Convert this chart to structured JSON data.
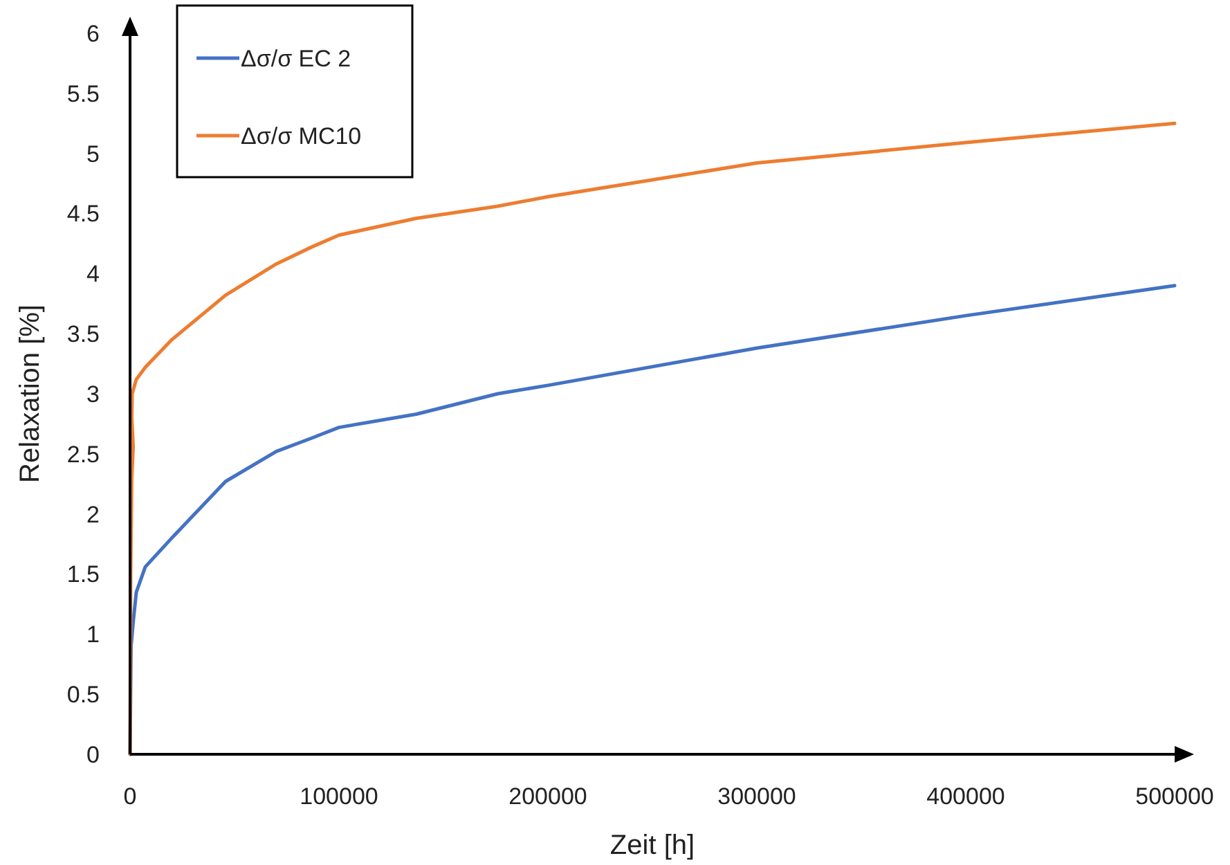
{
  "chart_data": {
    "type": "line",
    "xlabel": "Zeit [h]",
    "ylabel": "Relaxation [%]",
    "xlim": [
      0,
      500000
    ],
    "xticks": [
      0,
      100000,
      200000,
      300000,
      400000,
      500000
    ],
    "ylim": [
      0,
      6
    ],
    "yticks": [
      0,
      0.5,
      1,
      1.5,
      2,
      2.5,
      3,
      3.5,
      4,
      4.5,
      5,
      5.5,
      6
    ],
    "grid": false,
    "legend": "top left",
    "marker": "none",
    "line_style": "solid",
    "series": [
      {
        "name": "Δσ/σ EC 2",
        "color": "#4472c4",
        "x": [
          0,
          500,
          1500,
          3000,
          7300,
          20000,
          45700,
          70000,
          86800,
          100000,
          137000,
          176000,
          200000,
          300000,
          400000,
          500000
        ],
        "values": [
          0,
          0.9,
          1.1,
          1.35,
          1.56,
          1.8,
          2.27,
          2.52,
          2.63,
          2.72,
          2.83,
          3.0,
          3.07,
          3.38,
          3.65,
          3.9
        ]
      },
      {
        "name": "Δσ/σ MC10",
        "color": "#ed7d31",
        "x": [
          0,
          300,
          800,
          1500,
          800,
          1000,
          3000,
          7300,
          20000,
          45700,
          70000,
          86800,
          100000,
          137000,
          176000,
          200000,
          300000,
          400000,
          500000
        ],
        "values": [
          0,
          1.5,
          2.3,
          2.56,
          2.8,
          3.0,
          3.12,
          3.22,
          3.45,
          3.82,
          4.08,
          4.22,
          4.32,
          4.46,
          4.56,
          4.64,
          4.92,
          5.09,
          5.25
        ]
      }
    ]
  }
}
